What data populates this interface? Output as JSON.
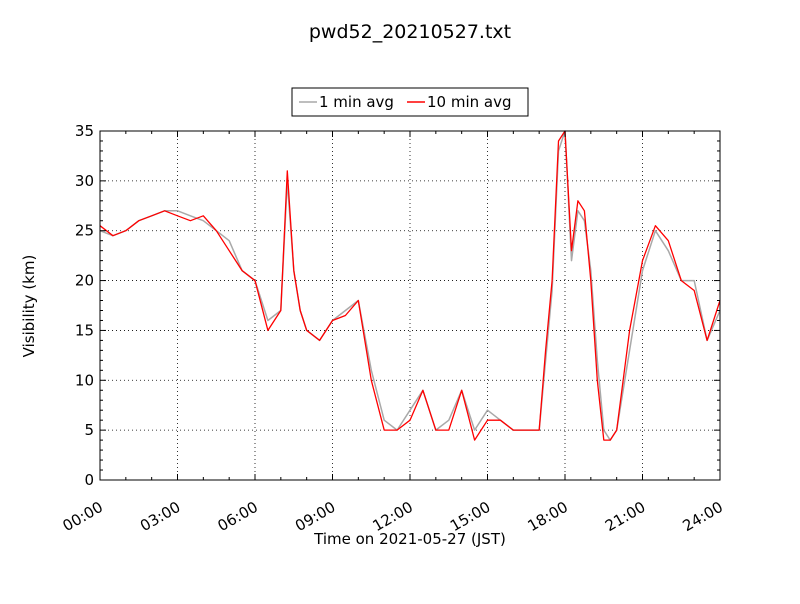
{
  "chart_data": {
    "type": "line",
    "title": "pwd52_20210527.txt",
    "xlabel": "Time on 2021-05-27 (JST)",
    "ylabel": "Visibility (km)",
    "xlim": [
      "00:00",
      "24:00"
    ],
    "ylim": [
      0,
      35
    ],
    "x_ticks": [
      "00:00",
      "03:00",
      "06:00",
      "09:00",
      "12:00",
      "15:00",
      "18:00",
      "21:00",
      "24:00"
    ],
    "y_ticks": [
      "0",
      "5",
      "10",
      "15",
      "20",
      "25",
      "30",
      "35"
    ],
    "grid": true,
    "legend_position": "top-center",
    "series": [
      {
        "name": "1 min avg",
        "color": "#a9a9a9",
        "x": [
          "00:00",
          "00:30",
          "01:00",
          "01:30",
          "02:00",
          "02:30",
          "03:00",
          "03:30",
          "04:00",
          "04:30",
          "05:00",
          "05:30",
          "06:00",
          "06:30",
          "07:00",
          "07:15",
          "07:30",
          "07:45",
          "08:00",
          "08:30",
          "09:00",
          "09:30",
          "10:00",
          "10:30",
          "11:00",
          "11:30",
          "12:00",
          "12:30",
          "13:00",
          "13:30",
          "14:00",
          "14:30",
          "15:00",
          "15:30",
          "16:00",
          "16:30",
          "17:00",
          "17:15",
          "17:30",
          "17:45",
          "18:00",
          "18:15",
          "18:30",
          "18:45",
          "19:00",
          "19:15",
          "19:30",
          "19:45",
          "20:00",
          "20:30",
          "21:00",
          "21:30",
          "22:00",
          "22:30",
          "23:00",
          "23:30",
          "24:00"
        ],
        "y": [
          25,
          24.5,
          25,
          26,
          26.5,
          27,
          27,
          26.5,
          26,
          25,
          24,
          21,
          20,
          16,
          17,
          30,
          21,
          17,
          15,
          14,
          16,
          17,
          18,
          11,
          6,
          5,
          7,
          9,
          5,
          6,
          9,
          5,
          7,
          6,
          5,
          5,
          5,
          12,
          19,
          33,
          35,
          22,
          27,
          26,
          21,
          12,
          5,
          4,
          5,
          13,
          21,
          25,
          23,
          20,
          20,
          14,
          17
        ]
      },
      {
        "name": "10 min avg",
        "color": "#ff0000",
        "x": [
          "00:00",
          "00:30",
          "01:00",
          "01:30",
          "02:00",
          "02:30",
          "03:00",
          "03:30",
          "04:00",
          "04:30",
          "05:00",
          "05:30",
          "06:00",
          "06:30",
          "07:00",
          "07:15",
          "07:30",
          "07:45",
          "08:00",
          "08:30",
          "09:00",
          "09:30",
          "10:00",
          "10:30",
          "11:00",
          "11:30",
          "12:00",
          "12:30",
          "13:00",
          "13:30",
          "14:00",
          "14:30",
          "15:00",
          "15:30",
          "16:00",
          "16:30",
          "17:00",
          "17:15",
          "17:30",
          "17:45",
          "18:00",
          "18:15",
          "18:30",
          "18:45",
          "19:00",
          "19:15",
          "19:30",
          "19:45",
          "20:00",
          "20:30",
          "21:00",
          "21:30",
          "22:00",
          "22:30",
          "23:00",
          "23:30",
          "24:00"
        ],
        "y": [
          25.5,
          24.5,
          25,
          26,
          26.5,
          27,
          26.5,
          26,
          26.5,
          25,
          23,
          21,
          20,
          15,
          17,
          31,
          21,
          17,
          15,
          14,
          16,
          16.5,
          18,
          10,
          5,
          5,
          6,
          9,
          5,
          5,
          9,
          4,
          6,
          6,
          5,
          5,
          5,
          13,
          20,
          34,
          35,
          23,
          28,
          27,
          20,
          10,
          4,
          4,
          5,
          15,
          22,
          25.5,
          24,
          20,
          19,
          14,
          18
        ]
      }
    ]
  }
}
